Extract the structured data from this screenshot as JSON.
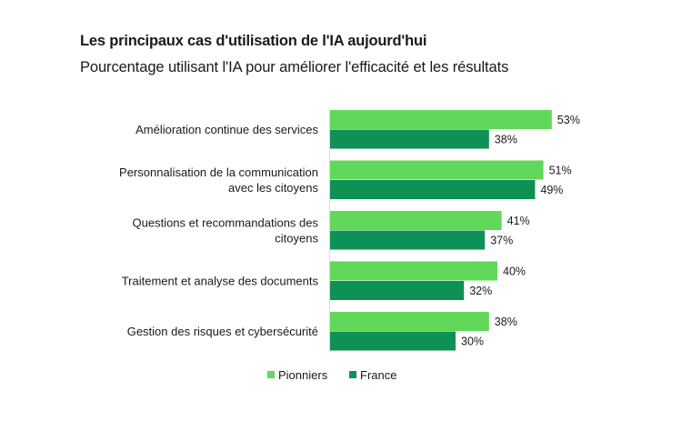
{
  "chart_data": {
    "type": "bar",
    "orientation": "horizontal",
    "title": "Les principaux cas d'utilisation de l'IA aujourd'hui",
    "subtitle": "Pourcentage utilisant l'IA pour améliorer l'efficacité et les résultats",
    "categories": [
      [
        "Amélioration continue des services"
      ],
      [
        "Personnalisation de la communication",
        "avec les citoyens"
      ],
      [
        "Questions et recommandations des",
        "citoyens"
      ],
      [
        "Traitement et analyse des documents"
      ],
      [
        "Gestion des risques et cybersécurité"
      ]
    ],
    "series": [
      {
        "name": "Pionniers",
        "color": "#62d85a",
        "values": [
          53,
          51,
          41,
          40,
          38
        ],
        "labels": [
          "53%",
          "51%",
          "41%",
          "40%",
          "38%"
        ]
      },
      {
        "name": "France",
        "color": "#0f9155",
        "values": [
          38,
          49,
          37,
          32,
          30
        ],
        "labels": [
          "38%",
          "49%",
          "37%",
          "32%",
          "30%"
        ]
      }
    ],
    "xlim": [
      0,
      60
    ],
    "grid": false,
    "legend": "bottom"
  }
}
